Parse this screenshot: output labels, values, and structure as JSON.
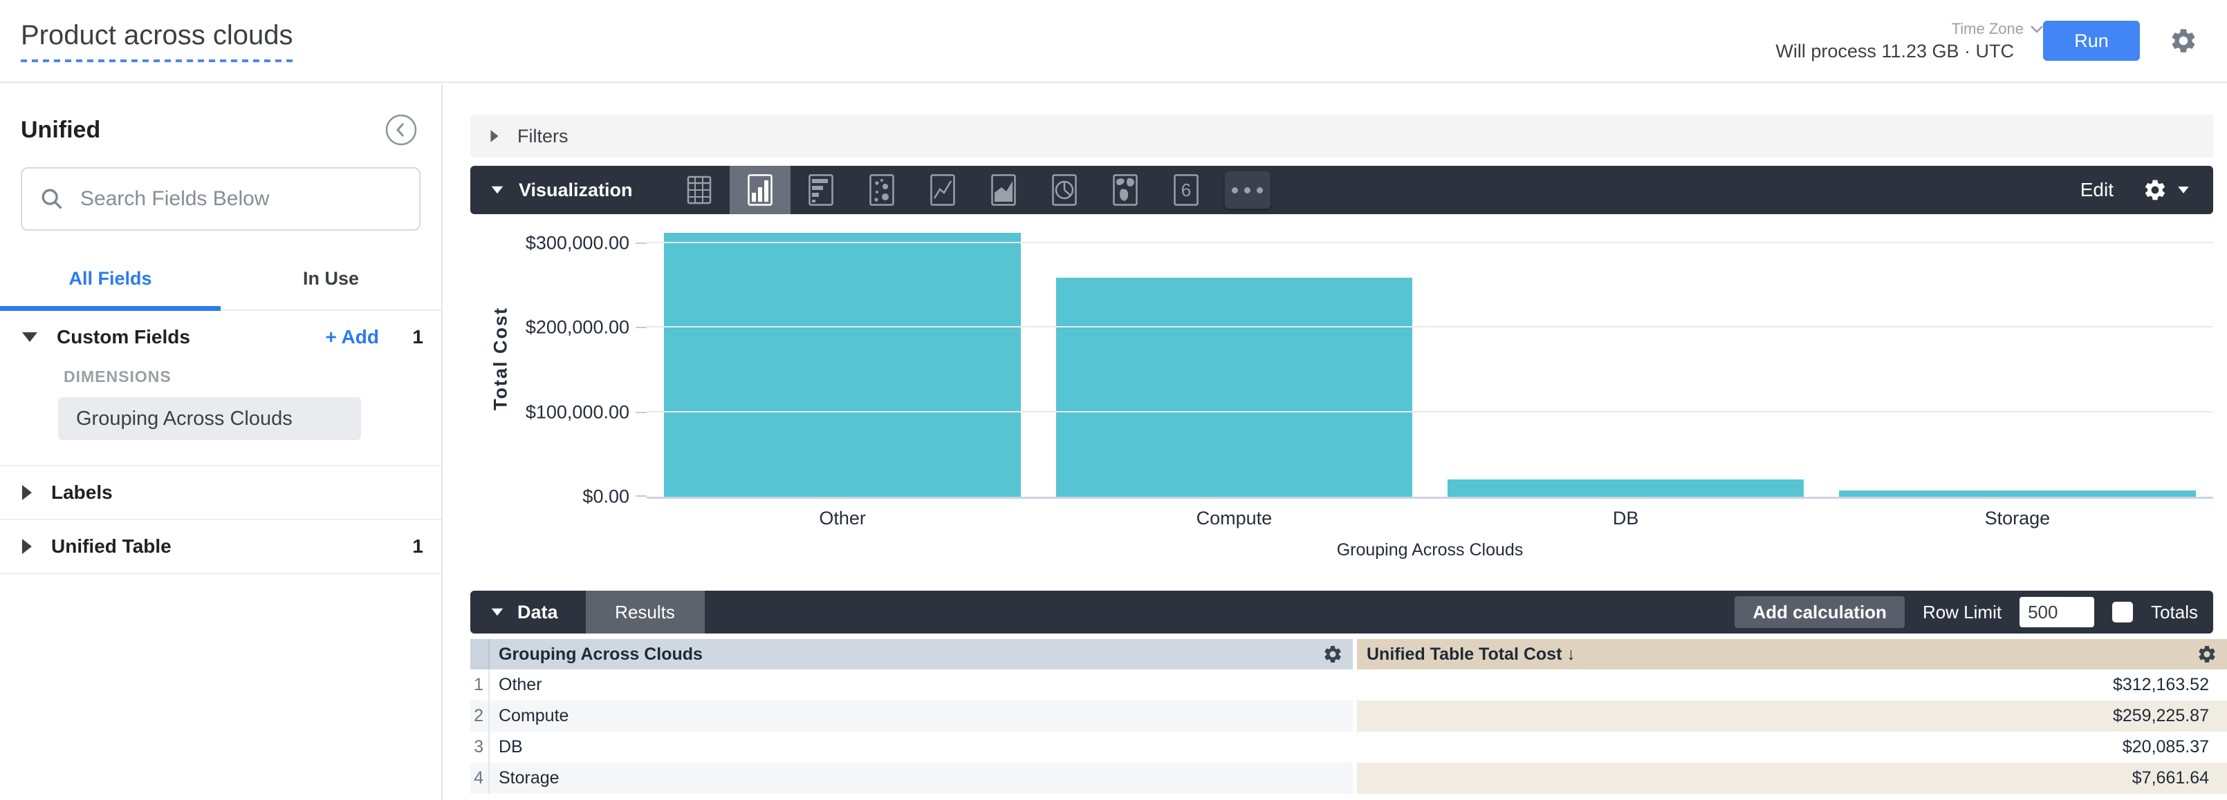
{
  "header": {
    "title": "Product across clouds",
    "process_info": "Will process 11.23 GB · UTC",
    "time_zone_label": "Time Zone",
    "run_label": "Run"
  },
  "sidebar": {
    "view_name": "Unified",
    "search_placeholder": "Search Fields Below",
    "tabs": [
      {
        "label": "All Fields",
        "active": true
      },
      {
        "label": "In Use",
        "active": false
      }
    ],
    "sections": [
      {
        "label": "Custom Fields",
        "add_label": "+ Add",
        "count": "1",
        "group_label": "DIMENSIONS",
        "fields": [
          "Grouping Across Clouds"
        ]
      },
      {
        "label": "Labels",
        "count": ""
      },
      {
        "label": "Unified Table",
        "count": "1"
      }
    ]
  },
  "filters": {
    "label": "Filters"
  },
  "visualization": {
    "label": "Visualization",
    "edit_label": "Edit",
    "single_value_glyph": "6",
    "icons": [
      "table",
      "column-bar",
      "horizontal-bar",
      "scatter",
      "line",
      "area",
      "pie",
      "map",
      "single-value",
      "more"
    ],
    "selected_icon": "column-bar"
  },
  "chart_data": {
    "type": "bar",
    "categories": [
      "Other",
      "Compute",
      "DB",
      "Storage"
    ],
    "values": [
      312163.52,
      259225.87,
      20085.37,
      7661.64
    ],
    "series_name": "Unified Table Total Cost",
    "title": "",
    "xlabel": "Grouping Across Clouds",
    "ylabel": "Total Cost",
    "ylim": [
      0,
      327000
    ],
    "yticks": [
      {
        "value": 0,
        "label": "$0.00"
      },
      {
        "value": 100000,
        "label": "$100,000.00"
      },
      {
        "value": 200000,
        "label": "$200,000.00"
      },
      {
        "value": 300000,
        "label": "$300,000.00"
      }
    ],
    "bar_color": "#56c4d2",
    "grid": true,
    "legend": false
  },
  "data_panel": {
    "label": "Data",
    "results_tab_label": "Results",
    "add_calculation_label": "Add calculation",
    "row_limit_label": "Row Limit",
    "row_limit_value": "500",
    "totals_label": "Totals",
    "columns": [
      {
        "label": "Grouping Across Clouds"
      },
      {
        "label": "Unified Table Total Cost ↓"
      }
    ],
    "rows": [
      {
        "num": "1",
        "dimension": "Other",
        "value": "$312,163.52"
      },
      {
        "num": "2",
        "dimension": "Compute",
        "value": "$259,225.87"
      },
      {
        "num": "3",
        "dimension": "DB",
        "value": "$20,085.37"
      },
      {
        "num": "4",
        "dimension": "Storage",
        "value": "$7,661.64"
      }
    ]
  },
  "colors": {
    "accent_blue": "#4285f4",
    "link_blue": "#2b7bf0",
    "bar_teal": "#56c4d2",
    "toolbar_dark": "#2d333e",
    "dimension_header_bg": "#cfd8e0",
    "measure_header_bg": "#dfd3c0"
  }
}
